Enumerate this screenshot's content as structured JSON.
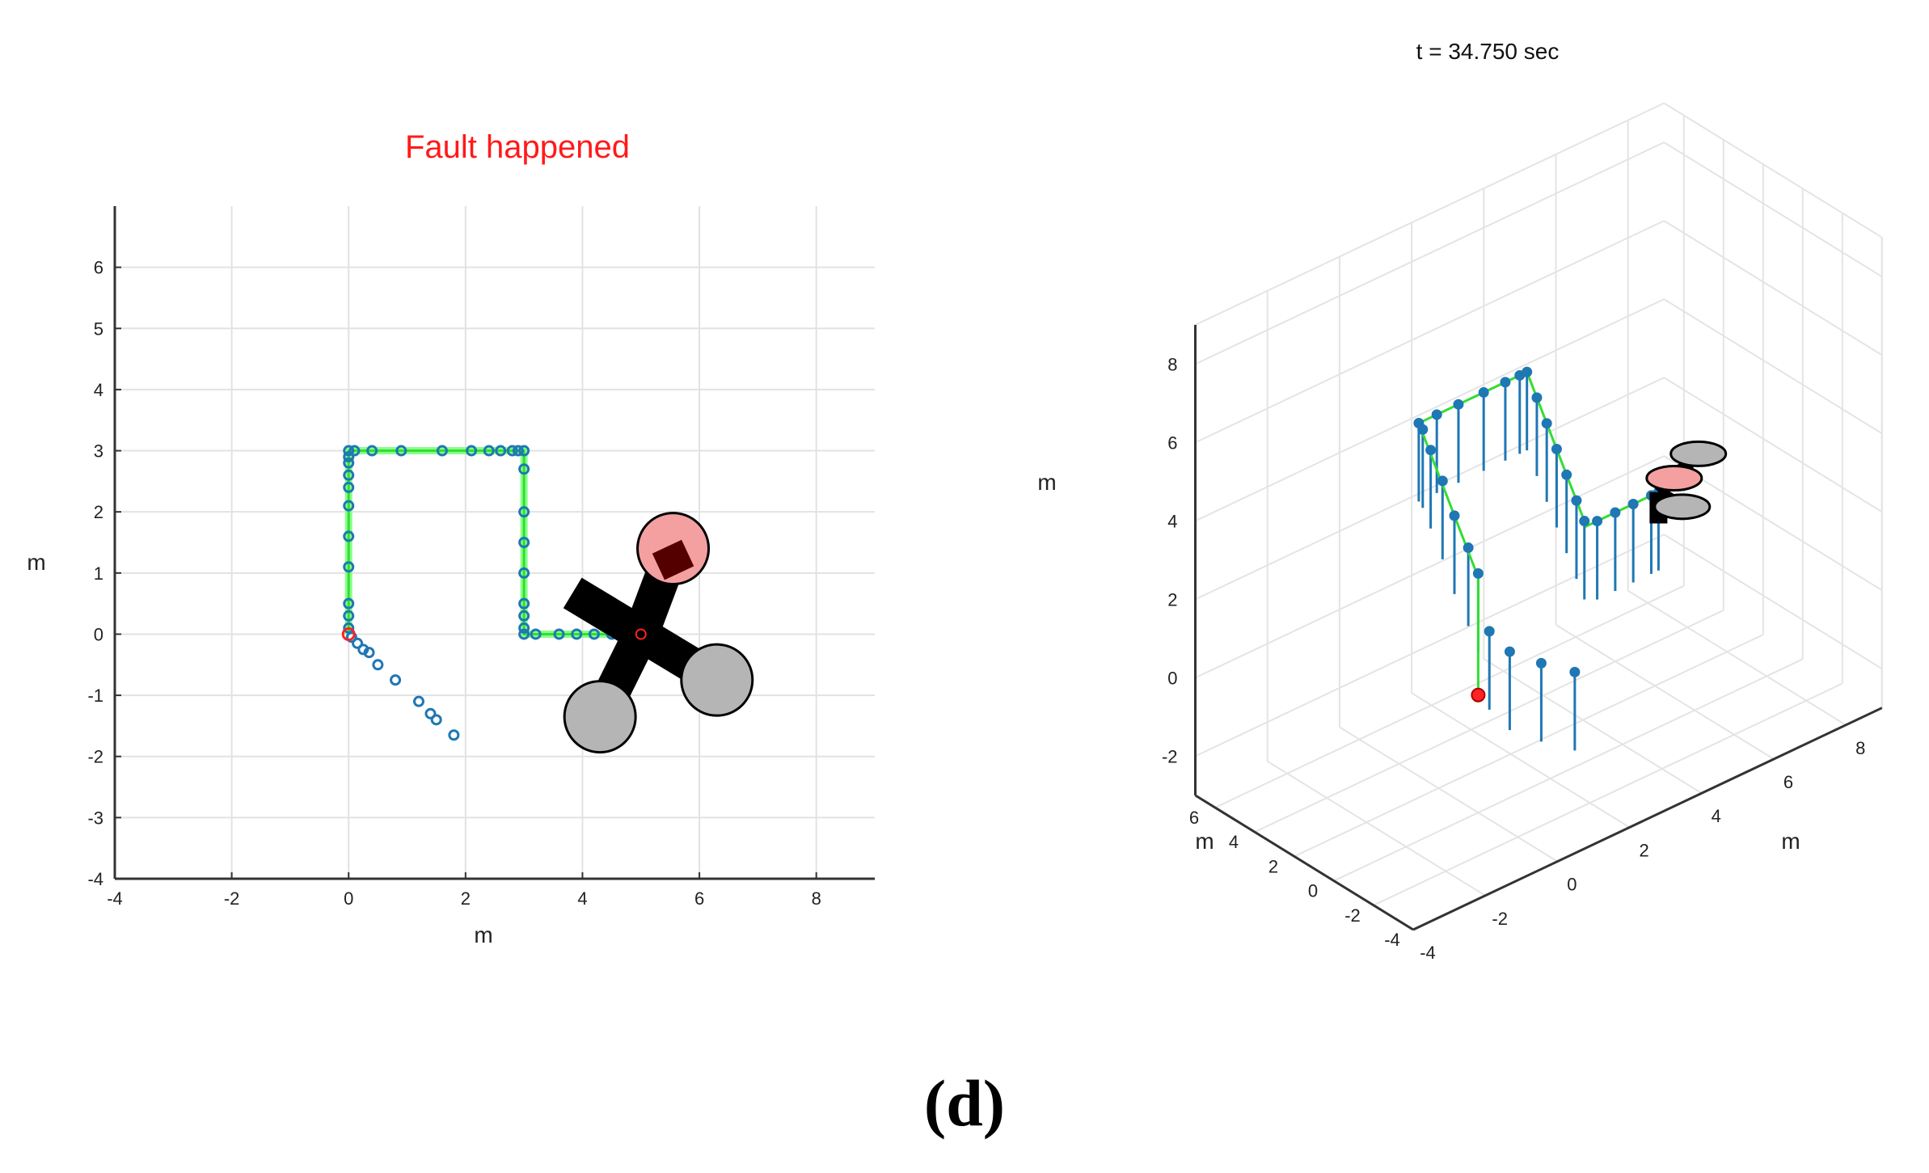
{
  "caption": "(d)",
  "colors": {
    "trajectory_marker": "#1f77b4",
    "path_line": "#33dd33",
    "path_glow": "#88ff88",
    "fault_text": "#ff1a1a",
    "start_marker": "#ff2222",
    "faulty_rotor": "#f4a0a0",
    "healthy_rotor": "#b5b5b5",
    "drone_body": "#000000"
  },
  "chart_data": [
    {
      "type": "scatter",
      "title": "Fault happened",
      "xlabel": "m",
      "ylabel": "m",
      "xlim": [
        -4,
        9
      ],
      "ylim": [
        -4,
        7
      ],
      "xticks": [
        "-4",
        "-2",
        "0",
        "2",
        "4",
        "6",
        "8"
      ],
      "yticks": [
        "-4",
        "-3",
        "-2",
        "-1",
        "0",
        "1",
        "2",
        "3",
        "4",
        "5",
        "6"
      ],
      "grid": true,
      "reference_path": {
        "x": [
          0,
          0,
          3,
          3,
          5
        ],
        "y": [
          0,
          3,
          3,
          0,
          0
        ]
      },
      "series": [
        {
          "marker": "circle",
          "points": [
            [
              0,
              0.1
            ],
            [
              0,
              0.3
            ],
            [
              0,
              0.5
            ],
            [
              0,
              1.1
            ],
            [
              0,
              1.6
            ],
            [
              0,
              2.1
            ],
            [
              0,
              2.4
            ],
            [
              0,
              2.6
            ],
            [
              0,
              2.8
            ],
            [
              0,
              2.9
            ],
            [
              0,
              3.0
            ],
            [
              0.1,
              3.0
            ],
            [
              0.4,
              3.0
            ],
            [
              0.9,
              3.0
            ],
            [
              1.6,
              3.0
            ],
            [
              2.1,
              3.0
            ],
            [
              2.4,
              3.0
            ],
            [
              2.6,
              3.0
            ],
            [
              2.8,
              3.0
            ],
            [
              2.9,
              3.0
            ],
            [
              3.0,
              3.0
            ],
            [
              3.0,
              2.7
            ],
            [
              3.0,
              2.0
            ],
            [
              3.0,
              1.5
            ],
            [
              3.0,
              1.0
            ],
            [
              3.0,
              0.5
            ],
            [
              3.0,
              0.3
            ],
            [
              3.0,
              0.1
            ],
            [
              3.0,
              0.0
            ],
            [
              3.2,
              0.0
            ],
            [
              3.6,
              0.0
            ],
            [
              3.9,
              0.0
            ],
            [
              4.2,
              0.0
            ],
            [
              4.5,
              0.0
            ],
            [
              4.7,
              0.0
            ],
            [
              4.9,
              0.0
            ],
            [
              0.05,
              -0.05
            ],
            [
              0.15,
              -0.15
            ],
            [
              0.25,
              -0.25
            ],
            [
              0.35,
              -0.3
            ],
            [
              0.5,
              -0.5
            ],
            [
              0.8,
              -0.75
            ],
            [
              1.2,
              -1.1
            ],
            [
              1.4,
              -1.3
            ],
            [
              1.5,
              -1.4
            ],
            [
              1.8,
              -1.65
            ]
          ]
        }
      ],
      "start_point": [
        0,
        0
      ],
      "drone": {
        "center": [
          5.0,
          0.0
        ],
        "rotors": [
          {
            "position": [
              5.55,
              1.4
            ],
            "state": "faulty"
          },
          {
            "position": [
              6.3,
              -0.75
            ],
            "state": "healthy"
          },
          {
            "position": [
              4.3,
              -1.35
            ],
            "state": "healthy"
          }
        ]
      }
    },
    {
      "type": "scatter",
      "title": "t = 34.750 sec",
      "xlabel": "m",
      "ylabel": "m",
      "zlabel": "m",
      "xlim": [
        -4,
        9
      ],
      "ylim": [
        -4,
        7
      ],
      "zlim": [
        -3,
        9
      ],
      "xticks": [
        "-4",
        "-2",
        "0",
        "2",
        "4",
        "6",
        "8"
      ],
      "yticks": [
        "-4",
        "-2",
        "0",
        "2",
        "4",
        "6"
      ],
      "zticks": [
        "-2",
        "0",
        "2",
        "4",
        "6",
        "8"
      ],
      "grid": true,
      "view": "3d",
      "reference_path": {
        "x": [
          0,
          0,
          0,
          3,
          3,
          5
        ],
        "y": [
          0,
          0,
          3,
          3,
          0,
          0
        ],
        "z": [
          0,
          3,
          6,
          6,
          3,
          3
        ]
      },
      "series": [
        {
          "marker": "circle",
          "stems": true,
          "points": [
            [
              0,
              0,
              3.1
            ],
            [
              0,
              0.5,
              3.6
            ],
            [
              0,
              1.2,
              4.2
            ],
            [
              0,
              1.8,
              4.9
            ],
            [
              0,
              2.4,
              5.5
            ],
            [
              0,
              2.8,
              5.9
            ],
            [
              0,
              3.0,
              6.0
            ],
            [
              0.5,
              3.0,
              6.0
            ],
            [
              1.1,
              3.0,
              6.0
            ],
            [
              1.8,
              3.0,
              6.0
            ],
            [
              2.4,
              3.0,
              6.0
            ],
            [
              2.8,
              3.0,
              6.0
            ],
            [
              3.0,
              3.0,
              6.0
            ],
            [
              3.0,
              2.5,
              5.5
            ],
            [
              3.0,
              2.0,
              5.0
            ],
            [
              3.0,
              1.5,
              4.5
            ],
            [
              3.0,
              1.0,
              4.0
            ],
            [
              3.0,
              0.5,
              3.5
            ],
            [
              3.0,
              0.1,
              3.1
            ],
            [
              3.3,
              0,
              3.0
            ],
            [
              3.8,
              0,
              3.0
            ],
            [
              4.3,
              0,
              3.0
            ],
            [
              4.8,
              0,
              3.0
            ],
            [
              5.0,
              0,
              3.0
            ],
            [
              0.2,
              -0.2,
              1.6
            ],
            [
              0.6,
              -0.5,
              1.0
            ],
            [
              1.2,
              -1.0,
              0.6
            ],
            [
              1.8,
              -1.6,
              0.3
            ]
          ]
        }
      ],
      "start_point": [
        0,
        0,
        0
      ],
      "drone": {
        "center": [
          5.0,
          0,
          3.0
        ],
        "rotors": [
          {
            "position": [
              5.6,
              0.3,
              3.0
            ],
            "state": "faulty"
          },
          {
            "position": [
              6.6,
              0.9,
              3.0
            ],
            "state": "healthy"
          },
          {
            "position": [
              5.0,
              -1.2,
              3.0
            ],
            "state": "healthy"
          }
        ]
      }
    }
  ]
}
